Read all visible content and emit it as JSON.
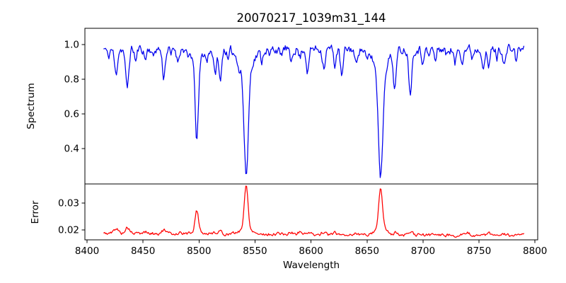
{
  "figure": {
    "background": "#ffffff",
    "axis_color": "#000000"
  },
  "chart_data": {
    "type": "line",
    "title": "20070217_1039m31_144",
    "xlabel": "Wavelength",
    "xlim": [
      8398.1,
      8802.4
    ],
    "xticks": [
      {
        "v": 8400,
        "label": "8400"
      },
      {
        "v": 8450,
        "label": "8450"
      },
      {
        "v": 8500,
        "label": "8500"
      },
      {
        "v": 8550,
        "label": "8550"
      },
      {
        "v": 8600,
        "label": "8600"
      },
      {
        "v": 8650,
        "label": "8650"
      },
      {
        "v": 8700,
        "label": "8700"
      },
      {
        "v": 8750,
        "label": "8750"
      },
      {
        "v": 8800,
        "label": "8800"
      }
    ],
    "x_data_range": [
      8415.0,
      8790.0
    ],
    "x_step": 0.75,
    "panels": [
      {
        "name": "spectrum",
        "ylabel": "Spectrum",
        "line_color": "#0000ee",
        "ylim": [
          0.196,
          1.094
        ],
        "yticks": [
          {
            "v": 0.4,
            "label": "0.4"
          },
          {
            "v": 0.6,
            "label": "0.6"
          },
          {
            "v": 0.8,
            "label": "0.8"
          },
          {
            "v": 1.0,
            "label": "1.0"
          }
        ],
        "continuum": 0.975,
        "noise_amplitude": 0.022,
        "noise_ar": 0.5,
        "noise_seed": 11,
        "absorption_lines": [
          {
            "c": 8419.0,
            "d": 0.05,
            "s": 1.0
          },
          {
            "c": 8425.8,
            "d": 0.15,
            "s": 1.3
          },
          {
            "c": 8435.8,
            "d": 0.23,
            "s": 1.4
          },
          {
            "c": 8443.5,
            "d": 0.07,
            "s": 1.0
          },
          {
            "c": 8452.0,
            "d": 0.06,
            "s": 1.0
          },
          {
            "c": 8459.0,
            "d": 0.05,
            "s": 0.9
          },
          {
            "c": 8468.5,
            "d": 0.16,
            "s": 1.3
          },
          {
            "c": 8475.0,
            "d": 0.04,
            "s": 0.9
          },
          {
            "c": 8481.0,
            "d": 0.07,
            "s": 1.0
          },
          {
            "c": 8490.0,
            "d": 0.05,
            "s": 0.9
          },
          {
            "c": 8498.02,
            "d": 0.46,
            "s": 1.5
          },
          {
            "c": 8498.02,
            "d": 0.06,
            "s": 5.0
          },
          {
            "c": 8507.0,
            "d": 0.06,
            "s": 1.0
          },
          {
            "c": 8514.2,
            "d": 0.15,
            "s": 1.2
          },
          {
            "c": 8518.8,
            "d": 0.18,
            "s": 1.3
          },
          {
            "c": 8526.0,
            "d": 0.07,
            "s": 1.0
          },
          {
            "c": 8536.0,
            "d": 0.05,
            "s": 0.9
          },
          {
            "c": 8542.09,
            "d": 0.62,
            "s": 1.9
          },
          {
            "c": 8542.09,
            "d": 0.11,
            "s": 6.5
          },
          {
            "c": 8556.0,
            "d": 0.06,
            "s": 1.0
          },
          {
            "c": 8563.0,
            "d": 0.05,
            "s": 0.9
          },
          {
            "c": 8573.0,
            "d": 0.05,
            "s": 1.0
          },
          {
            "c": 8582.0,
            "d": 0.08,
            "s": 1.1
          },
          {
            "c": 8590.0,
            "d": 0.05,
            "s": 1.0
          },
          {
            "c": 8597.0,
            "d": 0.13,
            "s": 1.2
          },
          {
            "c": 8611.5,
            "d": 0.1,
            "s": 1.2
          },
          {
            "c": 8621.3,
            "d": 0.09,
            "s": 1.1
          },
          {
            "c": 8627.5,
            "d": 0.16,
            "s": 1.3
          },
          {
            "c": 8640.0,
            "d": 0.09,
            "s": 1.1
          },
          {
            "c": 8650.0,
            "d": 0.06,
            "s": 1.0
          },
          {
            "c": 8662.14,
            "d": 0.62,
            "s": 2.0
          },
          {
            "c": 8662.14,
            "d": 0.11,
            "s": 6.5
          },
          {
            "c": 8674.8,
            "d": 0.2,
            "s": 1.4
          },
          {
            "c": 8688.6,
            "d": 0.24,
            "s": 1.4
          },
          {
            "c": 8699.4,
            "d": 0.07,
            "s": 1.0
          },
          {
            "c": 8705.0,
            "d": 0.05,
            "s": 0.9
          },
          {
            "c": 8711.0,
            "d": 0.07,
            "s": 1.0
          },
          {
            "c": 8721.0,
            "d": 0.04,
            "s": 0.9
          },
          {
            "c": 8728.5,
            "d": 0.09,
            "s": 1.1
          },
          {
            "c": 8735.0,
            "d": 0.06,
            "s": 1.0
          },
          {
            "c": 8744.0,
            "d": 0.05,
            "s": 0.9
          },
          {
            "c": 8754.0,
            "d": 0.09,
            "s": 1.1
          },
          {
            "c": 8758.5,
            "d": 0.11,
            "s": 1.2
          },
          {
            "c": 8766.0,
            "d": 0.05,
            "s": 0.9
          },
          {
            "c": 8772.7,
            "d": 0.09,
            "s": 1.2
          },
          {
            "c": 8783.0,
            "d": 0.06,
            "s": 1.0
          }
        ]
      },
      {
        "name": "error",
        "ylabel": "Error",
        "line_color": "#ff0000",
        "ylim": [
          0.0163,
          0.0371
        ],
        "yticks": [
          {
            "v": 0.02,
            "label": "0.02"
          },
          {
            "v": 0.03,
            "label": "0.03"
          }
        ],
        "baseline": 0.0187,
        "baseline_slope": -2e-06,
        "noise_amplitude": 0.0005,
        "noise_ar": 0.5,
        "noise_seed": 5,
        "peaks": [
          {
            "c": 8426.0,
            "h": 0.0018,
            "s": 2.0
          },
          {
            "c": 8436.0,
            "h": 0.0022,
            "s": 2.0
          },
          {
            "c": 8452.0,
            "h": 0.0007,
            "s": 1.5
          },
          {
            "c": 8468.5,
            "h": 0.0013,
            "s": 1.8
          },
          {
            "c": 8483.0,
            "h": 0.0006,
            "s": 1.5
          },
          {
            "c": 8498.02,
            "h": 0.0078,
            "s": 1.5
          },
          {
            "c": 8498.02,
            "h": 0.001,
            "s": 4.0
          },
          {
            "c": 8514.0,
            "h": 0.0008,
            "s": 1.5
          },
          {
            "c": 8519.0,
            "h": 0.0009,
            "s": 1.5
          },
          {
            "c": 8542.09,
            "h": 0.0155,
            "s": 1.6
          },
          {
            "c": 8542.09,
            "h": 0.0025,
            "s": 5.0
          },
          {
            "c": 8571.0,
            "h": 0.0005,
            "s": 1.3
          },
          {
            "c": 8582.0,
            "h": 0.0007,
            "s": 1.5
          },
          {
            "c": 8590.0,
            "h": 0.001,
            "s": 1.5
          },
          {
            "c": 8597.0,
            "h": 0.0009,
            "s": 1.4
          },
          {
            "c": 8611.0,
            "h": 0.0008,
            "s": 1.5
          },
          {
            "c": 8621.0,
            "h": 0.0006,
            "s": 1.5
          },
          {
            "c": 8640.0,
            "h": 0.0005,
            "s": 1.3
          },
          {
            "c": 8662.14,
            "h": 0.015,
            "s": 1.7
          },
          {
            "c": 8662.14,
            "h": 0.0024,
            "s": 5.0
          },
          {
            "c": 8675.0,
            "h": 0.0008,
            "s": 1.5
          },
          {
            "c": 8689.0,
            "h": 0.001,
            "s": 1.5
          },
          {
            "c": 8711.0,
            "h": 0.0005,
            "s": 1.3
          },
          {
            "c": 8740.0,
            "h": 0.0006,
            "s": 1.4
          },
          {
            "c": 8758.0,
            "h": 0.0008,
            "s": 1.5
          },
          {
            "c": 8772.0,
            "h": 0.0006,
            "s": 1.4
          }
        ]
      }
    ]
  }
}
